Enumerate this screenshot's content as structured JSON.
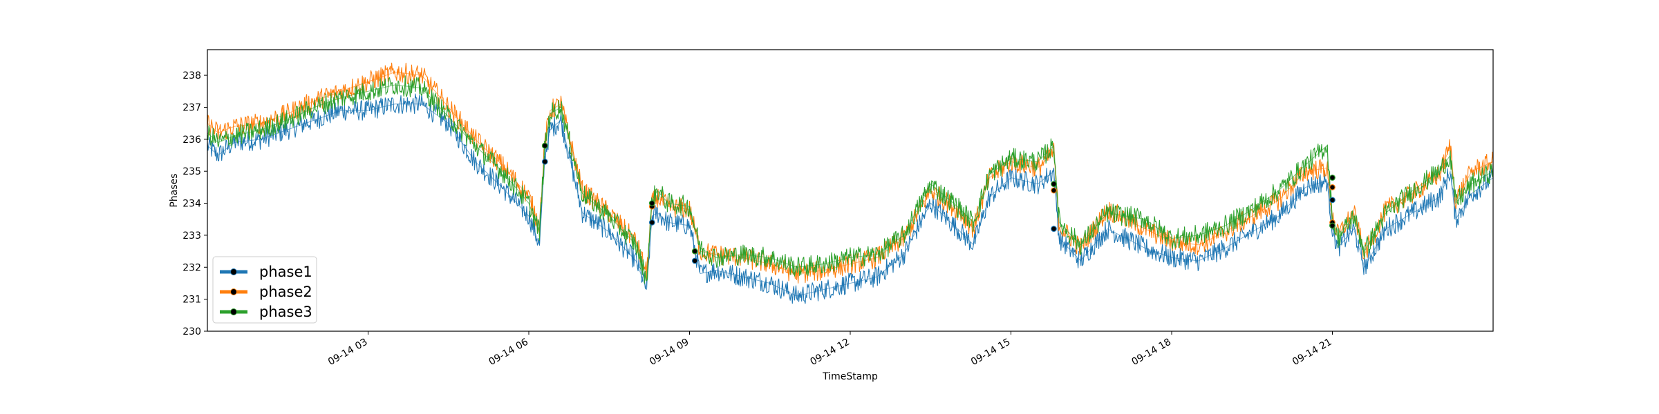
{
  "chart_data": {
    "type": "line",
    "xlabel": "TimeStamp",
    "ylabel": "Phases",
    "x_domain_hours": [
      0,
      24
    ],
    "ylim": [
      230,
      238.8
    ],
    "y_ticks": [
      230,
      231,
      232,
      233,
      234,
      235,
      236,
      237,
      238
    ],
    "x_ticks": [
      {
        "hour": 3,
        "label": "09-14 03"
      },
      {
        "hour": 6,
        "label": "09-14 06"
      },
      {
        "hour": 9,
        "label": "09-14 09"
      },
      {
        "hour": 12,
        "label": "09-14 12"
      },
      {
        "hour": 15,
        "label": "09-14 15"
      },
      {
        "hour": 18,
        "label": "09-14 18"
      },
      {
        "hour": 21,
        "label": "09-14 21"
      }
    ],
    "legend_position": "lower-left",
    "grid": false,
    "series": [
      {
        "name": "phase1",
        "color": "#1f77b4",
        "x": [
          0,
          0.2,
          0.5,
          1,
          1.5,
          2,
          2.5,
          3,
          3.5,
          4,
          4.5,
          5,
          5.5,
          6,
          6.2,
          6.3,
          6.4,
          6.6,
          7,
          7.5,
          8,
          8.2,
          8.3,
          8.4,
          8.6,
          9,
          9.2,
          9.5,
          10,
          10.5,
          11,
          11.5,
          12,
          12.5,
          13,
          13.5,
          14,
          14.3,
          14.6,
          15,
          15.5,
          15.8,
          15.9,
          16.3,
          16.8,
          17.5,
          18,
          18.5,
          19,
          19.5,
          20,
          20.5,
          20.9,
          21.0,
          21.1,
          21.4,
          21.6,
          22,
          22.5,
          23,
          23.2,
          23.3,
          23.6,
          24
        ],
        "y": [
          235.8,
          235.5,
          235.9,
          236.0,
          236.3,
          236.6,
          236.9,
          236.9,
          237.1,
          237.1,
          236.5,
          235.3,
          234.5,
          233.6,
          232.7,
          235.5,
          236.3,
          236.6,
          233.7,
          233.1,
          232.2,
          231.3,
          233.6,
          233.7,
          233.4,
          233.3,
          231.8,
          231.9,
          231.7,
          231.5,
          231.1,
          231.3,
          231.5,
          231.7,
          232.4,
          234.0,
          233.2,
          232.7,
          234.2,
          234.8,
          234.6,
          235.0,
          232.9,
          232.2,
          233.2,
          232.6,
          232.3,
          232.2,
          232.6,
          233.1,
          233.6,
          234.5,
          234.7,
          233.2,
          232.6,
          233.2,
          232.0,
          233.2,
          233.7,
          234.2,
          235.0,
          233.5,
          234.3,
          234.8
        ]
      },
      {
        "name": "phase2",
        "color": "#ff7f0e",
        "x": [
          0,
          0.2,
          0.5,
          1,
          1.5,
          2,
          2.5,
          3,
          3.5,
          4,
          4.5,
          5,
          5.5,
          6,
          6.2,
          6.3,
          6.4,
          6.6,
          7,
          7.5,
          8,
          8.2,
          8.3,
          8.4,
          8.6,
          9,
          9.2,
          9.5,
          10,
          10.5,
          11,
          11.5,
          12,
          12.5,
          13,
          13.5,
          14,
          14.3,
          14.6,
          15,
          15.5,
          15.8,
          15.9,
          16.3,
          16.8,
          17.5,
          18,
          18.5,
          19,
          19.5,
          20,
          20.5,
          20.9,
          21.0,
          21.1,
          21.4,
          21.6,
          22,
          22.5,
          23,
          23.2,
          23.3,
          23.6,
          24
        ],
        "y": [
          236.5,
          236.2,
          236.4,
          236.5,
          236.8,
          237.2,
          237.5,
          237.8,
          238.1,
          238.0,
          237.0,
          236.0,
          235.2,
          234.2,
          233.3,
          235.9,
          236.9,
          237.1,
          234.4,
          233.7,
          232.8,
          231.8,
          234.0,
          234.2,
          233.9,
          233.8,
          232.5,
          232.4,
          232.3,
          232.1,
          231.8,
          231.9,
          232.1,
          232.3,
          232.9,
          234.4,
          233.8,
          233.2,
          234.8,
          235.3,
          235.1,
          235.6,
          233.3,
          232.6,
          233.8,
          233.2,
          232.8,
          232.7,
          233.1,
          233.6,
          234.1,
          235.0,
          235.1,
          233.6,
          233.0,
          233.7,
          232.4,
          233.8,
          234.3,
          234.9,
          235.8,
          234.1,
          235.0,
          235.3
        ]
      },
      {
        "name": "phase3",
        "color": "#2ca02c",
        "x": [
          0,
          0.2,
          0.5,
          1,
          1.5,
          2,
          2.5,
          3,
          3.5,
          4,
          4.5,
          5,
          5.5,
          6,
          6.2,
          6.3,
          6.4,
          6.6,
          7,
          7.5,
          8,
          8.2,
          8.3,
          8.4,
          8.6,
          9,
          9.2,
          9.5,
          10,
          10.5,
          11,
          11.5,
          12,
          12.5,
          13,
          13.5,
          14,
          14.3,
          14.6,
          15,
          15.5,
          15.8,
          15.9,
          16.3,
          16.8,
          17.5,
          18,
          18.5,
          19,
          19.5,
          20,
          20.5,
          20.9,
          21.0,
          21.1,
          21.4,
          21.6,
          22,
          22.5,
          23,
          23.2,
          23.3,
          23.6,
          24
        ],
        "y": [
          236.2,
          235.9,
          236.1,
          236.3,
          236.6,
          237.0,
          237.3,
          237.5,
          237.7,
          237.6,
          236.7,
          235.8,
          235.0,
          234.0,
          233.1,
          235.8,
          236.8,
          237.0,
          234.3,
          233.6,
          232.7,
          231.6,
          234.1,
          234.4,
          234.0,
          233.9,
          232.6,
          232.3,
          232.4,
          232.3,
          232.0,
          232.1,
          232.3,
          232.4,
          233.0,
          234.6,
          233.9,
          233.4,
          234.9,
          235.4,
          235.3,
          235.8,
          233.4,
          232.7,
          233.7,
          233.5,
          232.9,
          233.0,
          233.3,
          233.8,
          234.4,
          235.2,
          235.8,
          233.5,
          232.9,
          233.6,
          232.5,
          233.7,
          234.4,
          235.0,
          235.5,
          234.0,
          234.6,
          235.0
        ]
      }
    ],
    "markers": [
      {
        "hour": 6.3,
        "values": [
          235.3,
          235.8,
          235.8
        ]
      },
      {
        "hour": 8.3,
        "values": [
          233.4,
          233.9,
          234.0
        ]
      },
      {
        "hour": 9.1,
        "values": [
          232.2,
          232.5,
          232.5
        ]
      },
      {
        "hour": 15.8,
        "values": [
          233.2,
          234.4,
          234.6
        ]
      },
      {
        "hour": 21.0,
        "values": [
          233.3,
          234.5,
          234.8
        ]
      },
      {
        "hour": 21.0,
        "values": [
          234.1,
          233.4,
          233.3
        ]
      }
    ]
  }
}
